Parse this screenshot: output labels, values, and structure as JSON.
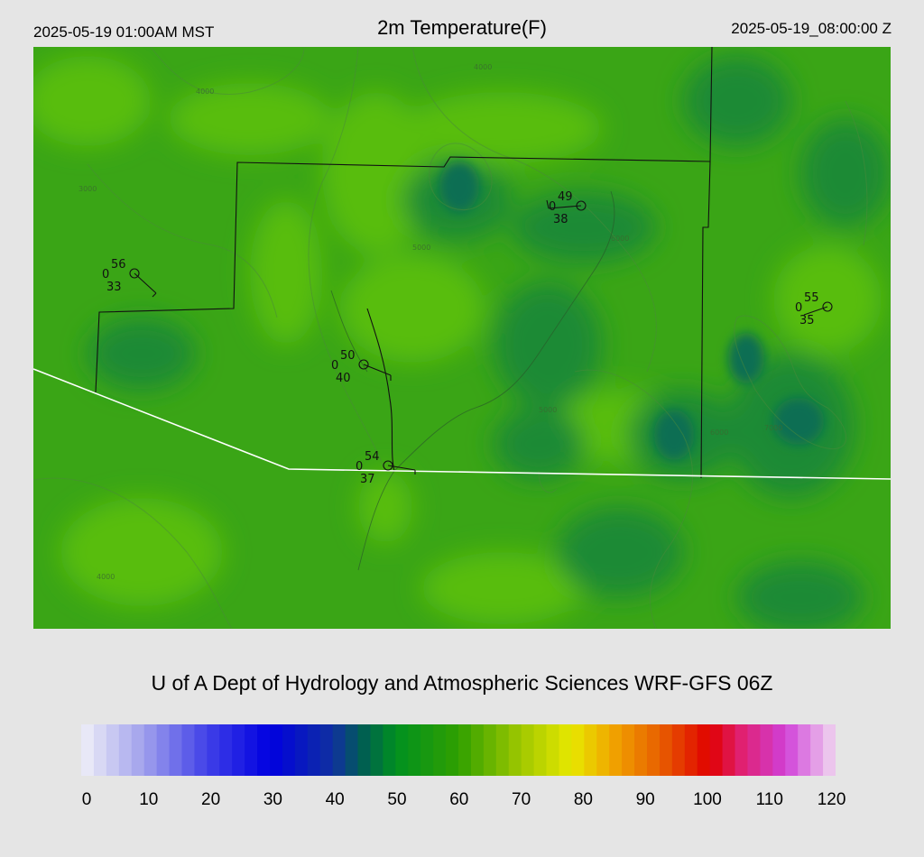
{
  "header": {
    "local_time": "2025-05-19 01:00AM MST",
    "title": "2m Temperature(F)",
    "valid_time": "2025-05-19_08:00:00 Z"
  },
  "credit": "U of A Dept of Hydrology and Atmospheric Sciences WRF-GFS 06Z",
  "colorbar": {
    "tick_labels": [
      "0",
      "10",
      "20",
      "30",
      "40",
      "50",
      "60",
      "70",
      "80",
      "90",
      "100",
      "110",
      "120"
    ],
    "stops": [
      {
        "value": 0,
        "color": "#f0f0f8"
      },
      {
        "value": 10,
        "color": "#a0a0ec"
      },
      {
        "value": 20,
        "color": "#4040e8"
      },
      {
        "value": 30,
        "color": "#0000e0"
      },
      {
        "value": 40,
        "color": "#1030a0"
      },
      {
        "value": 45,
        "color": "#006050"
      },
      {
        "value": 50,
        "color": "#009020"
      },
      {
        "value": 60,
        "color": "#30a000"
      },
      {
        "value": 70,
        "color": "#a0c800"
      },
      {
        "value": 78,
        "color": "#e8e800"
      },
      {
        "value": 85,
        "color": "#f0a000"
      },
      {
        "value": 92,
        "color": "#e86000"
      },
      {
        "value": 100,
        "color": "#e00000"
      },
      {
        "value": 105,
        "color": "#e02070"
      },
      {
        "value": 112,
        "color": "#d040d8"
      },
      {
        "value": 120,
        "color": "#f0d8f0"
      }
    ]
  },
  "map": {
    "field_colors": {
      "base": "#3aa516",
      "light": "#58bd0c",
      "dark": "#1a8a35",
      "darkest": "#0f6e52"
    },
    "contour_labels": [
      "4000",
      "5000",
      "6000",
      "3000",
      "7000"
    ],
    "stations": [
      {
        "name": "station-west",
        "temp": "56",
        "dewpoint": "33",
        "cloud": "0"
      },
      {
        "name": "station-north",
        "temp": "49",
        "dewpoint": "38",
        "cloud": "0"
      },
      {
        "name": "station-east",
        "temp": "55",
        "dewpoint": "35",
        "cloud": "0"
      },
      {
        "name": "station-center",
        "temp": "50",
        "dewpoint": "40",
        "cloud": "0"
      },
      {
        "name": "station-south",
        "temp": "54",
        "dewpoint": "37",
        "cloud": "0"
      }
    ]
  }
}
